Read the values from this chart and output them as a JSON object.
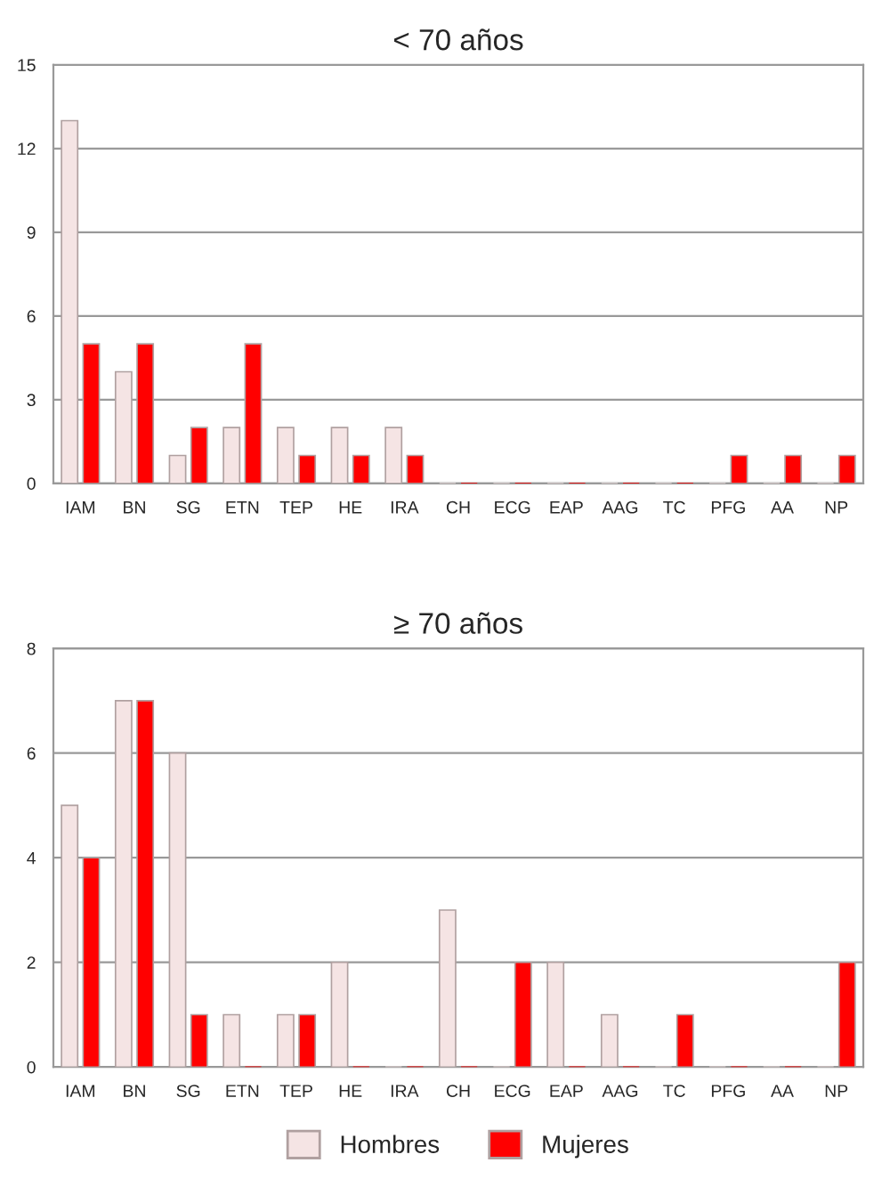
{
  "chart_data": [
    {
      "type": "bar",
      "title": "< 70 años",
      "categories": [
        "IAM",
        "BN",
        "SG",
        "ETN",
        "TEP",
        "HE",
        "IRA",
        "CH",
        "ECG",
        "EAP",
        "AAG",
        "TC",
        "PFG",
        "AA",
        "NP"
      ],
      "series": [
        {
          "color": "#f5e4e4",
          "values": [
            13,
            4,
            1,
            2,
            2,
            2,
            2,
            0,
            0,
            0,
            0,
            0,
            0,
            0,
            0
          ]
        },
        {
          "color": "#ff0000",
          "values": [
            5,
            5,
            2,
            5,
            1,
            1,
            1,
            0,
            0,
            0,
            0,
            0,
            1,
            1,
            1
          ]
        }
      ],
      "ylim": [
        0,
        15
      ],
      "yticks": [
        0,
        3,
        6,
        9,
        12,
        15
      ],
      "grid": "y",
      "legend": false
    },
    {
      "type": "bar",
      "title": "≥ 70 años",
      "categories": [
        "IAM",
        "BN",
        "SG",
        "ETN",
        "TEP",
        "HE",
        "IRA",
        "CH",
        "ECG",
        "EAP",
        "AAG",
        "TC",
        "PFG",
        "AA",
        "NP"
      ],
      "series": [
        {
          "name": "Hombres",
          "color": "#f5e4e4",
          "values": [
            5,
            7,
            6,
            1,
            1,
            2,
            0,
            3,
            0,
            2,
            1,
            0,
            0,
            0,
            0
          ]
        },
        {
          "name": "Mujeres",
          "color": "#ff0000",
          "values": [
            4,
            7,
            1,
            0,
            1,
            0,
            0,
            0,
            2,
            0,
            0,
            1,
            0,
            0,
            2
          ]
        }
      ],
      "ylim": [
        0,
        8
      ],
      "yticks": [
        0,
        2,
        4,
        6,
        8
      ],
      "grid": "y",
      "legend": "bottom"
    }
  ]
}
